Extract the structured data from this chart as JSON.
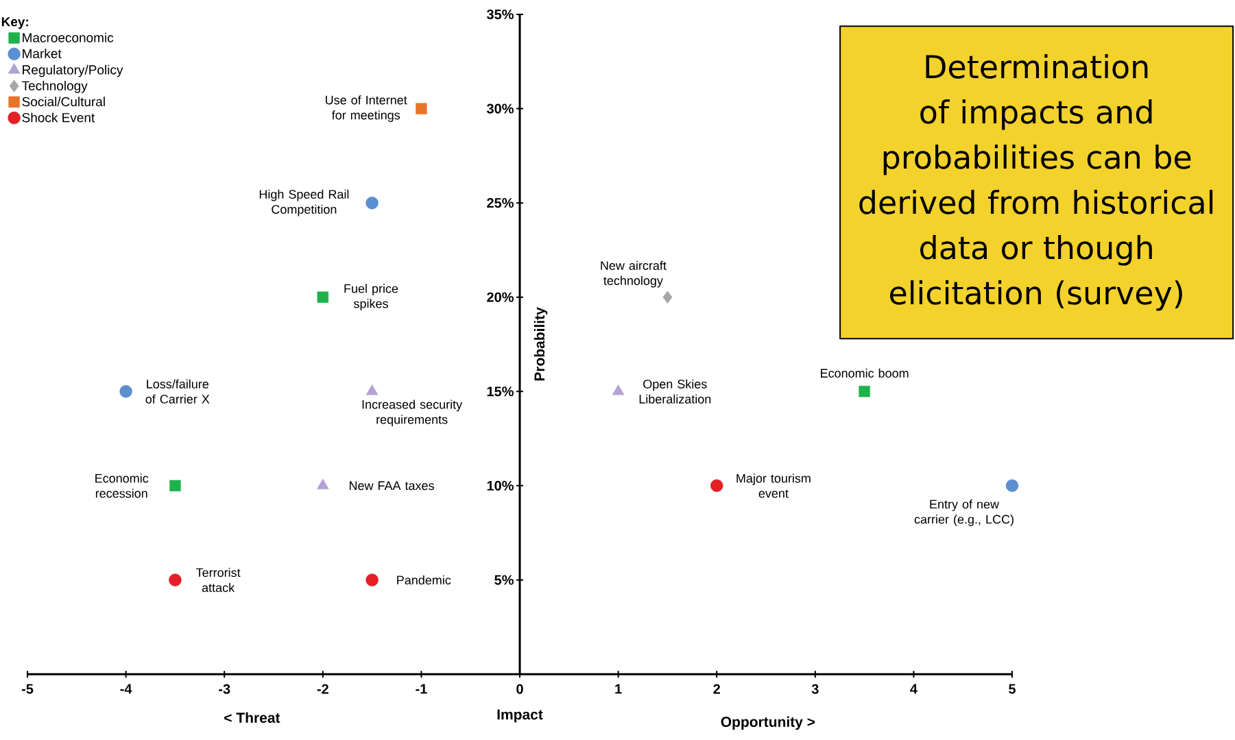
{
  "chart_data": {
    "type": "scatter",
    "xlabel": "Impact",
    "ylabel": "Probability",
    "legend": "top left",
    "legend_title": "Key:",
    "xlim": [
      -5,
      5
    ],
    "ylim": [
      0,
      35
    ],
    "xticks": [
      -5,
      -4,
      -3,
      -2,
      -1,
      0,
      1,
      2,
      3,
      4,
      5
    ],
    "yticks": [
      {
        "value": 5,
        "label": "5%"
      },
      {
        "value": 10,
        "label": "10%"
      },
      {
        "value": 15,
        "label": "15%"
      },
      {
        "value": 20,
        "label": "20%"
      },
      {
        "value": 25,
        "label": "25%"
      },
      {
        "value": 30,
        "label": "30%"
      },
      {
        "value": 35,
        "label": "35%"
      }
    ],
    "series": [
      {
        "name": "Macroeconomic",
        "color": "#1db14b",
        "marker": "square",
        "x": [
          -2,
          -3.5,
          3.5
        ],
        "values": [
          20,
          10,
          15
        ]
      },
      {
        "name": "Market",
        "color": "#5b8fd0",
        "marker": "circle",
        "x": [
          -1.5,
          -4,
          5
        ],
        "values": [
          25,
          15,
          10
        ]
      },
      {
        "name": "Regulatory/Policy",
        "color": "#b3a3d1",
        "marker": "triangle",
        "x": [
          -1.5,
          -2,
          1
        ],
        "values": [
          15,
          10,
          15
        ]
      },
      {
        "name": "Technology",
        "color": "#a6a6a6",
        "marker": "diamond",
        "x": [
          1.5
        ],
        "values": [
          20
        ]
      },
      {
        "name": "Social/Cultural",
        "color": "#e8732a",
        "marker": "square",
        "x": [
          -1
        ],
        "values": [
          30
        ]
      },
      {
        "name": "Shock Event",
        "color": "#e51f26",
        "marker": "circle",
        "x": [
          -3.5,
          -1.5,
          2
        ],
        "values": [
          5,
          5,
          10
        ]
      }
    ],
    "annotations": [
      {
        "text": "Use of Internet for meetings",
        "x": -1,
        "y": 30
      },
      {
        "text": "High Speed Rail Competition",
        "x": -1.5,
        "y": 25
      },
      {
        "text": "Fuel price spikes",
        "x": -2,
        "y": 20
      },
      {
        "text": "Loss/failure of Carrier X",
        "x": -4,
        "y": 15
      },
      {
        "text": "Increased security requirements",
        "x": -1.5,
        "y": 15
      },
      {
        "text": "Economic recession",
        "x": -3.5,
        "y": 10
      },
      {
        "text": "New FAA taxes",
        "x": -2,
        "y": 10
      },
      {
        "text": "Terrorist attack",
        "x": -3.5,
        "y": 5
      },
      {
        "text": "Pandemic",
        "x": -1.5,
        "y": 5
      },
      {
        "text": "New aircraft technology",
        "x": 1.5,
        "y": 20
      },
      {
        "text": "Open Skies Liberalization",
        "x": 1,
        "y": 15
      },
      {
        "text": "Economic boom",
        "x": 3.5,
        "y": 15
      },
      {
        "text": "Major tourism event",
        "x": 2,
        "y": 10
      },
      {
        "text": "Entry of new carrier (e.g., LCC)",
        "x": 5,
        "y": 10
      },
      "< Threat",
      "Opportunity >",
      "Determination of impacts and probabilities can be derived from historical data or though elicitation (survey)"
    ]
  }
}
